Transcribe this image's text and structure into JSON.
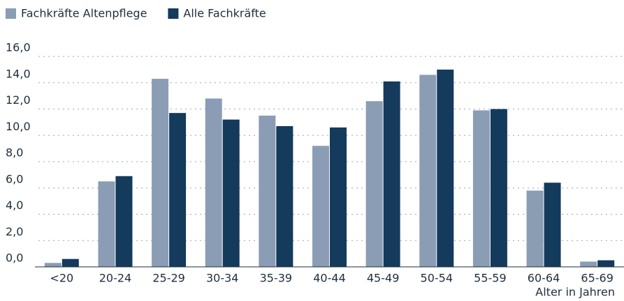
{
  "chart_data": {
    "type": "bar",
    "x_label": "Alter in Jahren",
    "categories": [
      "<20",
      "20-24",
      "25-29",
      "30-34",
      "35-39",
      "40-44",
      "45-49",
      "50-54",
      "55-59",
      "60-64",
      "65-69"
    ],
    "series": [
      {
        "name": "Fachkräfte Altenpflege",
        "color": "#8a9db5",
        "values": [
          0.3,
          6.5,
          14.3,
          12.8,
          11.5,
          9.2,
          12.6,
          14.6,
          11.9,
          5.8,
          0.4
        ]
      },
      {
        "name": "Alle Fachkräfte",
        "color": "#143a5c",
        "values": [
          0.6,
          6.9,
          11.7,
          11.2,
          10.7,
          10.6,
          14.1,
          15.0,
          12.0,
          6.4,
          0.5
        ]
      }
    ],
    "ylim": [
      0,
      16
    ],
    "yticks": [
      {
        "value": 0,
        "label": "0,0"
      },
      {
        "value": 2,
        "label": "2,0"
      },
      {
        "value": 4,
        "label": "4,0"
      },
      {
        "value": 6,
        "label": "6,0"
      },
      {
        "value": 8,
        "label": "8,0"
      },
      {
        "value": 10,
        "label": "10,0"
      },
      {
        "value": 12,
        "label": "12,0"
      },
      {
        "value": 14,
        "label": "14,0"
      },
      {
        "value": 16,
        "label": "16,0"
      }
    ],
    "grid": true,
    "legend": "top-left"
  }
}
